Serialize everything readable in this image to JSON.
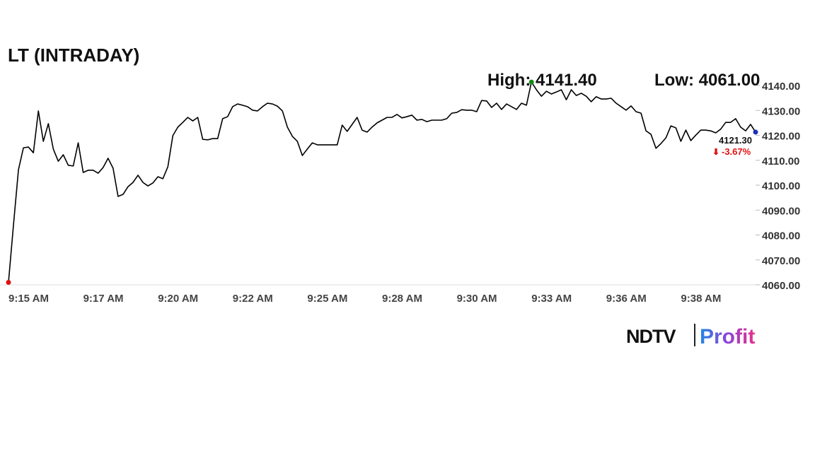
{
  "chart_data": {
    "type": "line",
    "title": "LT (INTRADAY)",
    "high_label": "High: 4141.40",
    "low_label": "Low: 4061.00",
    "last_label": "4121.30",
    "change_label": "-3.67%",
    "categories": [
      "9:15 AM",
      null,
      null,
      null,
      null,
      null,
      null,
      null,
      null,
      null,
      null,
      null,
      null,
      null,
      null,
      "9:17 AM",
      null,
      null,
      null,
      null,
      null,
      null,
      null,
      null,
      null,
      null,
      null,
      null,
      null,
      null,
      "9:20 AM",
      null,
      null,
      null,
      null,
      null,
      null,
      null,
      null,
      null,
      null,
      null,
      null,
      null,
      null,
      "9:22 AM",
      null,
      null,
      null,
      null,
      null,
      null,
      null,
      null,
      null,
      null,
      null,
      null,
      null,
      null,
      "9:25 AM",
      null,
      null,
      null,
      null,
      null,
      null,
      null,
      null,
      null,
      null,
      null,
      null,
      null,
      null,
      "9:28 AM",
      null,
      null,
      null,
      null,
      null,
      null,
      null,
      null,
      null,
      null,
      null,
      null,
      null,
      null,
      "9:30 AM",
      null,
      null,
      null,
      null,
      null,
      null,
      null,
      null,
      null,
      null,
      null,
      null,
      null,
      null,
      "9:33 AM",
      null,
      null,
      null,
      null,
      null,
      null,
      null,
      null,
      null,
      null,
      null,
      null,
      null,
      null,
      "9:36 AM",
      null,
      null,
      null,
      null,
      null,
      null,
      null,
      null,
      null,
      null,
      null,
      null,
      null,
      null,
      "9:38 AM",
      null,
      null,
      null,
      null,
      null,
      null,
      null,
      null,
      null,
      null,
      null,
      null,
      null,
      null,
      null
    ],
    "series": [
      {
        "name": "LT",
        "color": "#000000",
        "values": [
          4061.0,
          4084.0,
          4106.2,
          4115.0,
          4115.3,
          4113.0,
          4129.8,
          4117.6,
          4124.7,
          4114.5,
          4109.6,
          4112.2,
          4108.0,
          4107.7,
          4117.0,
          4105.1,
          4106.0,
          4106.0,
          4104.8,
          4107.1,
          4110.8,
          4106.8,
          4095.5,
          4096.3,
          4099.4,
          4101.1,
          4104.0,
          4101.1,
          4099.7,
          4100.9,
          4103.4,
          4102.6,
          4107.4,
          4119.9,
          4123.3,
          4125.2,
          4127.2,
          4125.8,
          4127.2,
          4118.4,
          4118.2,
          4118.7,
          4118.7,
          4126.7,
          4127.5,
          4131.5,
          4132.6,
          4132.1,
          4131.5,
          4130.1,
          4129.8,
          4131.5,
          4132.9,
          4132.6,
          4131.7,
          4129.8,
          4123.3,
          4119.6,
          4117.6,
          4111.9,
          4114.5,
          4117.0,
          4116.2,
          4116.2,
          4116.2,
          4116.2,
          4116.2,
          4124.1,
          4121.6,
          4124.4,
          4127.2,
          4122.1,
          4121.3,
          4123.3,
          4125.0,
          4126.1,
          4127.2,
          4127.2,
          4128.4,
          4127.0,
          4127.5,
          4128.1,
          4126.1,
          4126.4,
          4125.5,
          4126.1,
          4126.1,
          4126.1,
          4126.7,
          4128.9,
          4129.2,
          4130.3,
          4130.1,
          4130.1,
          4129.5,
          4134.0,
          4133.8,
          4131.2,
          4132.9,
          4130.4,
          4132.6,
          4131.5,
          4130.4,
          4132.9,
          4132.1,
          4141.4,
          4138.3,
          4135.7,
          4137.7,
          4136.6,
          4137.4,
          4138.3,
          4134.3,
          4138.3,
          4136.0,
          4136.9,
          4135.7,
          4133.5,
          4135.5,
          4134.6,
          4134.6,
          4134.9,
          4132.9,
          4131.5,
          4130.1,
          4131.8,
          4129.5,
          4128.9,
          4121.8,
          4120.4,
          4114.8,
          4116.7,
          4119.0,
          4123.8,
          4123.0,
          4117.6,
          4122.1,
          4117.9,
          4120.1,
          4122.1,
          4122.1,
          4121.8,
          4121.0,
          4122.5,
          4125.2,
          4125.2,
          4126.7,
          4123.3,
          4121.8,
          4124.4,
          4121.3
        ]
      }
    ],
    "ylim": [
      4060,
      4140
    ],
    "yticks": [
      {
        "value": 4060,
        "label": "4060.00"
      },
      {
        "value": 4070,
        "label": "4070.00"
      },
      {
        "value": 4080,
        "label": "4080.00"
      },
      {
        "value": 4090,
        "label": "4090.00"
      },
      {
        "value": 4100,
        "label": "4100.00"
      },
      {
        "value": 4110,
        "label": "4110.00"
      },
      {
        "value": 4120,
        "label": "4120.00"
      },
      {
        "value": 4130,
        "label": "4130.00"
      },
      {
        "value": 4140,
        "label": "4140.00"
      }
    ],
    "marker_colors": {
      "low": "#e01010",
      "high": "#148a14",
      "last": "#1c2fb8"
    },
    "change_color": "#e01010"
  },
  "logo": {
    "left": "NDTV",
    "right": "Profit"
  }
}
